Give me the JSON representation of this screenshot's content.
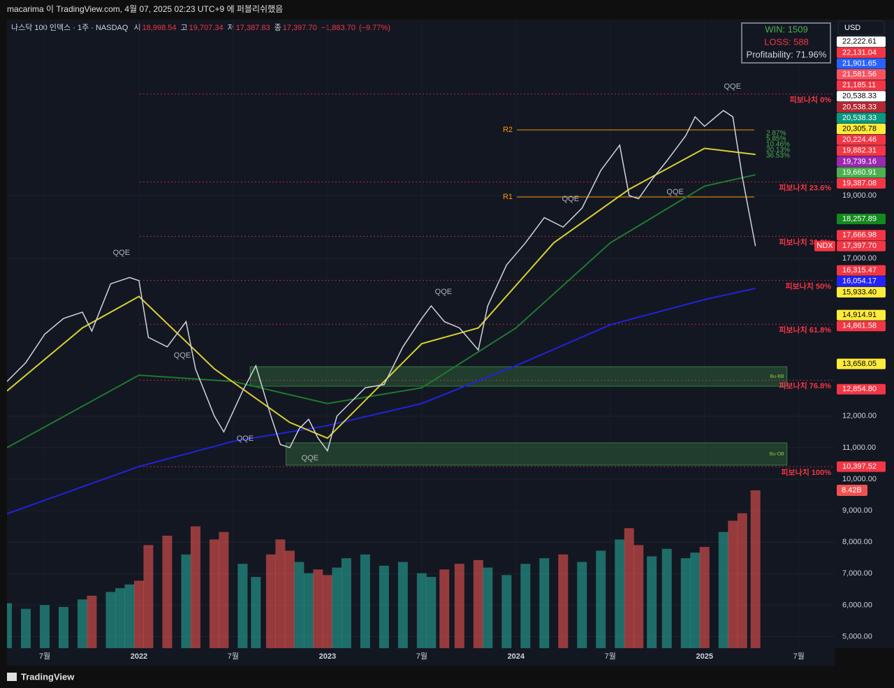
{
  "header": {
    "publisher": "macarima 이 TradingView.com, 4월 07, 2025 02:23 UTC+9 에 퍼블리쉬했음"
  },
  "chart_data": {
    "type": "line",
    "symbol": "나스닥 100 인덱스 · 1주 · NASDAQ",
    "ohlc": [
      {
        "key": "시",
        "value": 18998.54,
        "label": "18,998.54"
      },
      {
        "key": "고",
        "value": 19707.34,
        "label": "19,707.34"
      },
      {
        "key": "저",
        "value": 17387.83,
        "label": "17,387.83"
      },
      {
        "key": "종",
        "value": 17397.7,
        "label": "17,397.70"
      }
    ],
    "change": {
      "value": -1883.7,
      "label": "−1,883.70"
    },
    "change_pct": {
      "value": -9.77,
      "label": "(−9.77%)"
    },
    "currency": "USD",
    "symbol_tag": "NDX",
    "stats": [
      "WIN: 1509",
      "LOSS: 588",
      "Profitability: 71.96%"
    ],
    "color": "#d1d4dc",
    "x": [
      2021.3,
      2021.4,
      2021.5,
      2021.6,
      2021.7,
      2021.75,
      2021.85,
      2021.9,
      2021.95,
      2022.0,
      2022.05,
      2022.15,
      2022.25,
      2022.3,
      2022.4,
      2022.45,
      2022.55,
      2022.62,
      2022.7,
      2022.75,
      2022.8,
      2022.85,
      2022.9,
      2022.95,
      2023.0,
      2023.05,
      2023.1,
      2023.2,
      2023.3,
      2023.4,
      2023.5,
      2023.55,
      2023.62,
      2023.7,
      2023.8,
      2023.85,
      2023.95,
      2024.05,
      2024.15,
      2024.25,
      2024.35,
      2024.45,
      2024.55,
      2024.6,
      2024.65,
      2024.72,
      2024.8,
      2024.9,
      2024.95,
      2025.0,
      2025.1,
      2025.15,
      2025.2,
      2025.27
    ],
    "values": [
      13100,
      13700,
      14600,
      15100,
      15300,
      14700,
      16200,
      16300,
      16400,
      16300,
      14500,
      14200,
      15000,
      13500,
      12000,
      11500,
      12800,
      13600,
      12000,
      11100,
      11000,
      11600,
      11900,
      11300,
      10900,
      12000,
      12300,
      12900,
      13000,
      14200,
      15100,
      15500,
      15000,
      14800,
      14100,
      15500,
      16800,
      17500,
      18300,
      18000,
      18600,
      19800,
      20600,
      19000,
      18900,
      19500,
      20100,
      20900,
      21500,
      21200,
      21700,
      21500,
      19600,
      17397.7
    ],
    "volume": {
      "values": [
        2.4,
        2.1,
        2.3,
        2.2,
        2.6,
        2.8,
        3.0,
        3.2,
        3.4,
        3.6,
        5.5,
        6.0,
        5.0,
        6.5,
        5.8,
        6.2,
        4.5,
        3.8,
        5.0,
        5.8,
        5.2,
        4.6,
        4.0,
        4.2,
        3.9,
        4.3,
        4.8,
        5.0,
        4.4,
        4.6,
        4.0,
        3.8,
        4.2,
        4.5,
        4.7,
        4.3,
        3.9,
        4.5,
        4.8,
        5.0,
        4.6,
        5.2,
        5.8,
        6.4,
        5.5,
        4.9,
        5.3,
        4.8,
        5.1,
        5.4,
        6.2,
        6.8,
        7.2,
        8.42
      ],
      "up_color": "#26a69a",
      "down_color": "#ef5350",
      "last_label": {
        "value": 8.42,
        "label": "8.42B",
        "color": "#ef5350"
      }
    },
    "xlim": [
      2021.3,
      2025.69
    ],
    "xticks": [
      {
        "value": 2021.5,
        "label": "7월"
      },
      2022,
      {
        "value": 2022.5,
        "label": "7월"
      },
      2023,
      {
        "value": 2023.5,
        "label": "7월"
      },
      2024,
      {
        "value": 2024.5,
        "label": "7월"
      },
      2025,
      {
        "value": 2025.5,
        "label": "7월"
      }
    ],
    "ylim": [
      4635,
      24587
    ],
    "yticks": [
      {
        "value": 5000,
        "label": "5,000.00"
      },
      {
        "value": 6000,
        "label": "6,000.00"
      },
      {
        "value": 7000,
        "label": "7,000.00"
      },
      {
        "value": 8000,
        "label": "8,000.00"
      },
      {
        "value": 9000,
        "label": "9,000.00"
      },
      {
        "value": 10000,
        "label": "10,000.00"
      },
      {
        "value": 11000,
        "label": "11,000.00"
      },
      {
        "value": 12000,
        "label": "12,000.00"
      },
      {
        "value": 17000,
        "label": "17,000.00"
      },
      {
        "value": 19000,
        "label": "19,000.00"
      }
    ],
    "lines": [
      {
        "color": "#2222dd",
        "x": [
          2021.3,
          2022.0,
          2022.5,
          2022.8,
          2023.0,
          2023.5,
          2024.0,
          2024.5,
          2025.0,
          2025.27
        ],
        "values": [
          8900,
          10400,
          11200,
          11500,
          11700,
          12400,
          13600,
          14900,
          15700,
          16054.17
        ]
      },
      {
        "color": "#1e7a2e",
        "x": [
          2021.3,
          2022.0,
          2022.5,
          2023.0,
          2023.5,
          2024.0,
          2024.5,
          2025.0,
          2025.27
        ],
        "values": [
          11000,
          13300,
          13100,
          12400,
          12900,
          14800,
          17500,
          19300,
          19660.91
        ]
      },
      {
        "color": "#d8d030",
        "x": [
          2021.3,
          2021.7,
          2022.0,
          2022.4,
          2022.8,
          2023.0,
          2023.5,
          2023.8,
          2024.2,
          2024.6,
          2025.0,
          2025.27
        ],
        "values": [
          12800,
          14800,
          15800,
          13500,
          11800,
          11300,
          14300,
          14800,
          17500,
          19200,
          20500,
          20305.78
        ]
      }
    ],
    "price_labels": [
      {
        "value": 22222.61,
        "label": "22,222.61",
        "color": "#ffffff"
      },
      {
        "value": 22131.04,
        "label": "22,131.04",
        "color": "#f23645"
      },
      {
        "value": 21901.65,
        "label": "21,901.65",
        "color": "#2962ff"
      },
      {
        "value": 21581.56,
        "label": "21,581.56",
        "color": "#f7525f"
      },
      {
        "value": 21185.11,
        "label": "21,185.11",
        "color": "#f23645"
      },
      {
        "value": 20538.33,
        "label": "20,538.33",
        "color": "#089981"
      },
      {
        "value": 20538.33,
        "label": "20,538.33",
        "color": "#b22833"
      },
      {
        "value": 20538.33,
        "label": "20,538.33",
        "color": "#ffffff"
      },
      {
        "value": 20305.78,
        "label": "20,305.78",
        "color": "#ffeb3b"
      },
      {
        "value": 20224.46,
        "label": "20,224.46",
        "color": "#f23645"
      },
      {
        "value": 19882.31,
        "label": "19,882.31",
        "color": "#f23645"
      },
      {
        "value": 19739.16,
        "label": "19,739.16",
        "color": "#9c27b0"
      },
      {
        "value": 19660.91,
        "label": "19,660.91",
        "color": "#4caf50"
      },
      {
        "value": 19387.08,
        "label": "19,387.08",
        "color": "#f23645"
      },
      {
        "value": 18257.89,
        "label": "18,257.89",
        "color": "#138a1e"
      },
      {
        "value": 17666.98,
        "label": "17,666.98",
        "color": "#f23645"
      },
      {
        "value": 17397.7,
        "label": "17,397.70",
        "color": "#f23645"
      },
      {
        "value": 16315.47,
        "label": "16,315.47",
        "color": "#f23645"
      },
      {
        "value": 16054.17,
        "label": "16,054.17",
        "color": "#2323ff"
      },
      {
        "value": 15933.4,
        "label": "15,933.40",
        "color": "#ffeb3b"
      },
      {
        "value": 14914.91,
        "label": "14,914.91",
        "color": "#ffeb3b"
      },
      {
        "value": 14861.58,
        "label": "14,861.58",
        "color": "#f23645"
      },
      {
        "value": 13658.05,
        "label": "13,658.05",
        "color": "#ffeb3b"
      },
      {
        "value": 12854.8,
        "label": "12,854.80",
        "color": "#f23645"
      },
      {
        "value": 10397.52,
        "label": "10,397.52",
        "color": "#f23645"
      }
    ],
    "fib_levels": [
      {
        "label": "피보나치 0%",
        "value": 22222.61
      },
      {
        "label": "피보나치 23.6%",
        "value": 19431.8
      },
      {
        "label": "피보나치 38.2%",
        "value": 17705.4
      },
      {
        "label": "피보나치 50%",
        "value": 16310.1
      },
      {
        "label": "피보나치 61.8%",
        "value": 14914.9
      },
      {
        "label": "피보나치 76.8%",
        "value": 13140.7
      },
      {
        "label": "피보나치 100%",
        "value": 10397.5
      }
    ],
    "pivots": [
      {
        "label": "R2",
        "value": 21084
      },
      {
        "label": "R1",
        "value": 18955
      }
    ],
    "zones": [
      {
        "label": "Bu-BB",
        "x": [
          2022.59,
          2025.437
        ],
        "values": [
          13570,
          12949
        ]
      },
      {
        "label": "Bu-OB",
        "x": [
          2022.78,
          2025.437
        ],
        "values": [
          11153,
          10443
        ]
      }
    ],
    "percent_labels": [
      "2.87%",
      "5.85%",
      "10.46%",
      "20.13%",
      "36.53%"
    ],
    "annotations": [
      {
        "text": "QQE",
        "x": 2021.907,
        "y": 17183
      },
      {
        "text": "QQE",
        "x": 2022.23,
        "y": 13924
      },
      {
        "text": "QQE",
        "x": 2022.563,
        "y": 11286
      },
      {
        "text": "QQE",
        "x": 2022.907,
        "y": 10665
      },
      {
        "text": "QQE",
        "x": 2023.615,
        "y": 15941
      },
      {
        "text": "QQE",
        "x": 2024.289,
        "y": 18890
      },
      {
        "text": "QQE",
        "x": 2024.844,
        "y": 19111
      },
      {
        "text": "QQE",
        "x": 2025.148,
        "y": 22459
      }
    ]
  },
  "footer": {
    "logo": "TradingView"
  }
}
